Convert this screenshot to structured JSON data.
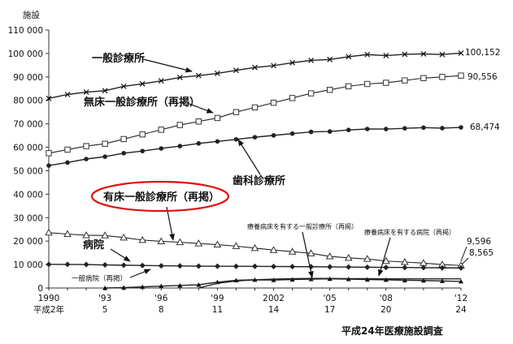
{
  "chart_data": {
    "type": "line",
    "ylabel": "施設",
    "source": "平成24年医療施設調査",
    "ylim": [
      0,
      110000
    ],
    "yticks": [
      0,
      10000,
      20000,
      30000,
      40000,
      50000,
      60000,
      70000,
      80000,
      90000,
      100000,
      110000
    ],
    "ytick_labels": [
      "0",
      "10 000",
      "20 000",
      "30 000",
      "40 000",
      "50 000",
      "60 000",
      "70 000",
      "80 000",
      "90 000",
      "100 000",
      "110 000"
    ],
    "xlim": [
      1990,
      2012
    ],
    "xticks": [
      {
        "x": 1990,
        "top": "1990",
        "bottom": "平成2年"
      },
      {
        "x": 1993,
        "top": "'93",
        "bottom": "5"
      },
      {
        "x": 1996,
        "top": "'96",
        "bottom": "8"
      },
      {
        "x": 1999,
        "top": "'99",
        "bottom": "11"
      },
      {
        "x": 2002,
        "top": "2002",
        "bottom": "14"
      },
      {
        "x": 2005,
        "top": "'05",
        "bottom": "17"
      },
      {
        "x": 2008,
        "top": "'08",
        "bottom": "20"
      },
      {
        "x": 2012,
        "top": "'12",
        "bottom": "24"
      }
    ],
    "x": [
      1990,
      1991,
      1992,
      1993,
      1994,
      1995,
      1996,
      1997,
      1998,
      1999,
      2000,
      2001,
      2002,
      2003,
      2004,
      2005,
      2006,
      2007,
      2008,
      2009,
      2010,
      2011,
      2012
    ],
    "series": [
      {
        "name": "一般診療所",
        "marker": "x",
        "end_label": "100,152",
        "values": [
          80852,
          82500,
          83500,
          84128,
          86000,
          87069,
          88300,
          89800,
          90556,
          91500,
          92824,
          94019,
          94819,
          96050,
          97051,
          97442,
          98609,
          99532,
          99083,
          99635,
          99824,
          99547,
          100152
        ]
      },
      {
        "name": "無床一般診療所（再掲）",
        "marker": "square",
        "end_label": "90,556",
        "values": [
          57500,
          59000,
          60500,
          61500,
          63500,
          65500,
          67500,
          69500,
          71000,
          72500,
          75000,
          77000,
          79000,
          81000,
          83000,
          84500,
          86000,
          87000,
          87500,
          88500,
          89500,
          90000,
          90556
        ]
      },
      {
        "name": "歯科診療所",
        "marker": "dot",
        "end_label": "68,474",
        "values": [
          52216,
          53500,
          55000,
          56000,
          57500,
          58407,
          59500,
          60500,
          61651,
          62500,
          63361,
          64297,
          65073,
          65828,
          66557,
          66732,
          67392,
          67798,
          67779,
          68097,
          68384,
          68156,
          68474
        ]
      },
      {
        "name": "有床一般診療所（再掲）",
        "marker": "triangle-open",
        "end_label": "9,596",
        "values": [
          23589,
          23000,
          22500,
          22383,
          21500,
          20452,
          19900,
          19500,
          19000,
          18500,
          17853,
          17000,
          16178,
          15500,
          14765,
          13477,
          12858,
          12399,
          11500,
          11072,
          10620,
          10000,
          9596
        ]
      },
      {
        "name": "病院",
        "marker": "diamond",
        "end_label": "8,565",
        "values": [
          10096,
          10066,
          10026,
          9844,
          9731,
          9606,
          9490,
          9413,
          9333,
          9286,
          9266,
          9239,
          9187,
          9122,
          9077,
          9026,
          8943,
          8862,
          8794,
          8739,
          8670,
          8605,
          8565
        ]
      },
      {
        "name": "療養病床を有する一般診療所（再掲）",
        "marker": "triangle-filled",
        "end_label": "",
        "values": [
          null,
          null,
          null,
          0,
          200,
          500,
          800,
          1100,
          1400,
          2500,
          3300,
          3500,
          3400,
          3600,
          3800,
          3900,
          3800,
          3600,
          3500,
          3300,
          3200,
          3000,
          2800
        ]
      },
      {
        "name": "療養病床を有する病院（再掲）",
        "marker": "line",
        "end_label": "",
        "values": [
          null,
          null,
          null,
          null,
          null,
          null,
          null,
          null,
          0,
          2000,
          3000,
          3500,
          3800,
          4000,
          4100,
          4100,
          4000,
          4000,
          3900,
          3900,
          3900,
          3900,
          3900
        ]
      }
    ],
    "labels": {
      "ippan": "一般診療所",
      "musho": "無床一般診療所（再掲）",
      "shika": "歯科診療所",
      "yusho": "有床一般診療所（再掲）",
      "byoin": "病院",
      "ryoyo_clinic": "療養病床を有する一般診療所（再掲）",
      "ryoyo_hosp": "療養病床を有する病院（再掲）",
      "ippan_byoin": "一般病院（再掲）"
    }
  }
}
